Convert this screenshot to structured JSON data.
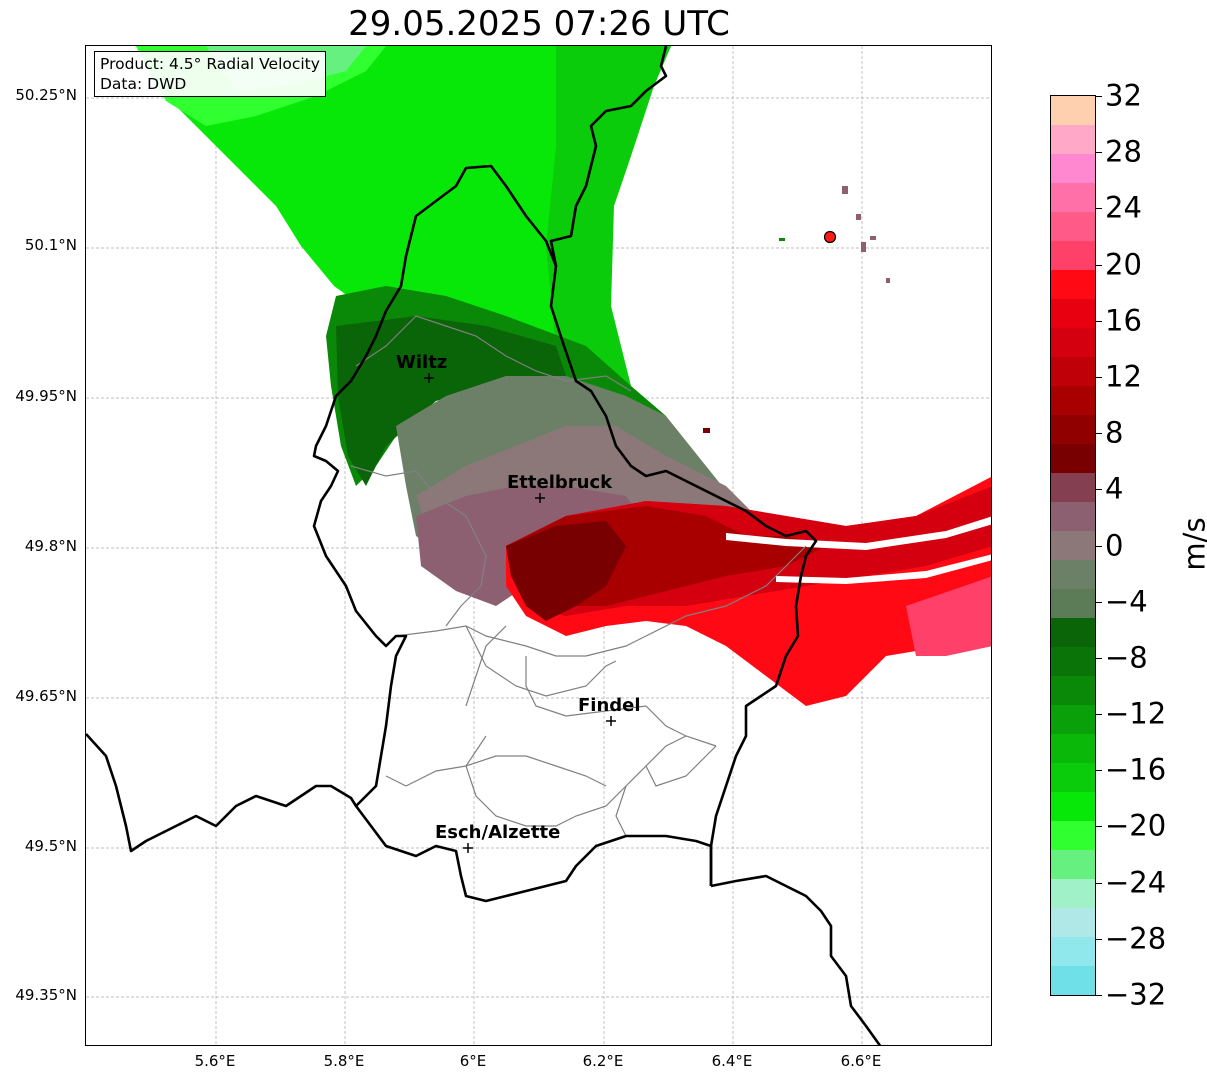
{
  "title": "29.05.2025 07:26 UTC",
  "info": {
    "product": "Product: 4.5° Radial Velocity",
    "source": "Data: DWD"
  },
  "axes": {
    "lat_labels": [
      "50.25°N",
      "50.1°N",
      "49.95°N",
      "49.8°N",
      "49.65°N",
      "49.5°N",
      "49.35°N"
    ],
    "lon_labels": [
      "5.6°E",
      "5.8°E",
      "6°E",
      "6.2°E",
      "6.4°E",
      "6.6°E"
    ]
  },
  "cities": [
    {
      "name": "Wiltz"
    },
    {
      "name": "Ettelbruck"
    },
    {
      "name": "Findel"
    },
    {
      "name": "Esch/Alzette"
    }
  ],
  "colorbar": {
    "unit": "m/s",
    "min": -32,
    "max": 32,
    "tick_labels": [
      "32",
      "28",
      "24",
      "20",
      "16",
      "12",
      "8",
      "4",
      "0",
      "−4",
      "−8",
      "−12",
      "−16",
      "−20",
      "−24",
      "−28",
      "−32"
    ],
    "colors_top_to_bottom": [
      "#ffd0b0",
      "#ffa8c8",
      "#ff88d0",
      "#ff70a8",
      "#ff5a88",
      "#ff4068",
      "#ff0a14",
      "#e80010",
      "#d40010",
      "#c00008",
      "#a80000",
      "#900000",
      "#780000",
      "#844050",
      "#8c6070",
      "#8c7878",
      "#6c8068",
      "#5c7c58",
      "#0a6408",
      "#0a7408",
      "#0a8808",
      "#0aa00a",
      "#0ab80a",
      "#0acc0a",
      "#08e808",
      "#30ff30",
      "#66f080",
      "#a0f0c8",
      "#b0e8e8",
      "#90e8ec",
      "#70e0e8"
    ]
  },
  "radar_site_color": "#ff1a1a"
}
